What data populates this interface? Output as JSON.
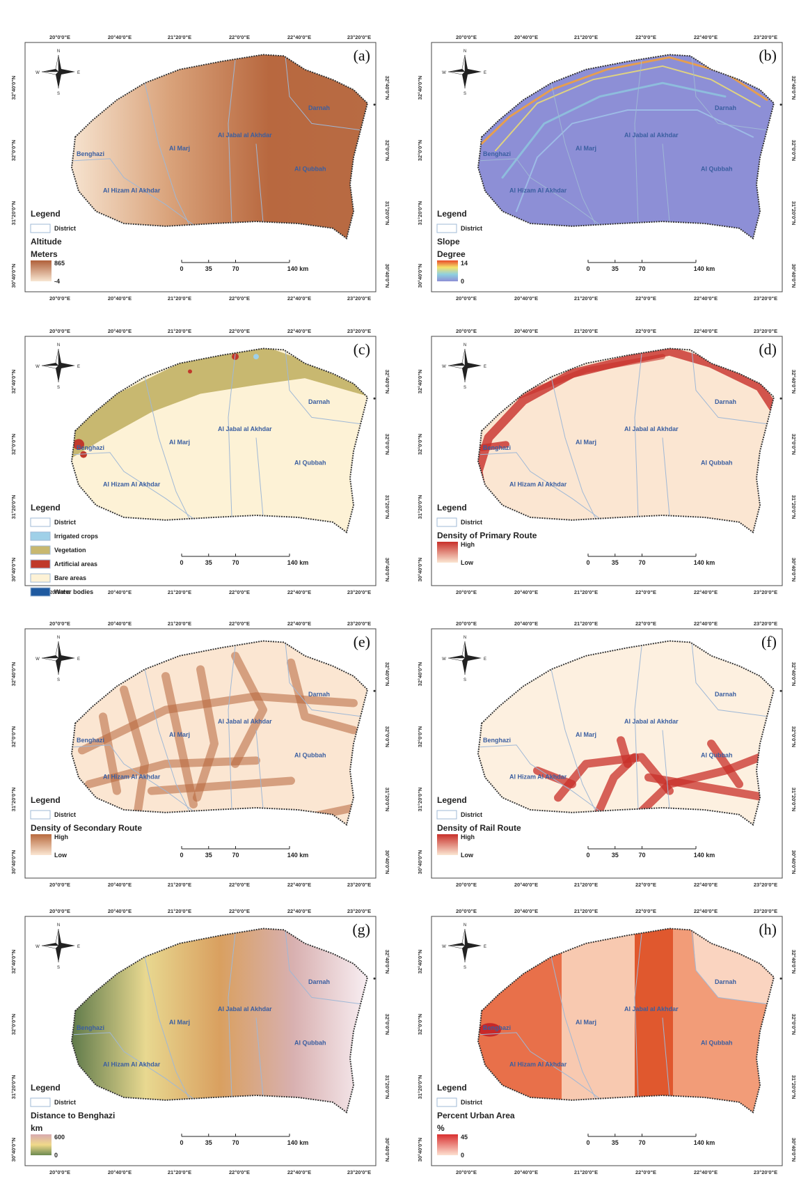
{
  "common": {
    "lon_labels": [
      "20°0'0\"E",
      "20°40'0\"E",
      "21°20'0\"E",
      "22°0'0\"E",
      "22°40'0\"E",
      "23°20'0\"E"
    ],
    "lat_labels": [
      "32°40'0\"N",
      "32°0'0\"N",
      "31°20'0\"N",
      "30°40'0\"N"
    ],
    "scale_labels": [
      "0",
      "35",
      "70",
      "140 km"
    ],
    "districts": [
      "Benghazi",
      "Al Marj",
      "Al Jabal al Akhdar",
      "Darnah",
      "Al Qubbah",
      "Al Hizam Al Akhdar"
    ],
    "compass": [
      "N",
      "S",
      "E",
      "W"
    ],
    "legend_title": "Legend",
    "district_label": "District"
  },
  "panels": [
    {
      "label": "(a)",
      "layer": "Altitude",
      "unit": "Meters",
      "max": 865,
      "min": -4
    },
    {
      "label": "(b)",
      "layer": "Slope",
      "unit": "Degree",
      "max": 14,
      "min": 0
    },
    {
      "label": "(c)",
      "classes": [
        "Irrigated crops",
        "Vegetation",
        "Artificial areas",
        "Bare areas",
        "Water bodies"
      ]
    },
    {
      "label": "(d)",
      "layer": "Density of Primary Route",
      "max": "High",
      "min": "Low"
    },
    {
      "label": "(e)",
      "layer": "Density of Secondary Route",
      "max": "High",
      "min": "Low"
    },
    {
      "label": "(f)",
      "layer": "Density of Rail Route",
      "max": "High",
      "min": "Low"
    },
    {
      "label": "(g)",
      "layer": "Distance to Benghazi",
      "unit": "km",
      "max": 600,
      "min": 0
    },
    {
      "label": "(h)",
      "layer": "Percent Urban Area",
      "unit": "%",
      "max": 45,
      "min": 0
    }
  ]
}
